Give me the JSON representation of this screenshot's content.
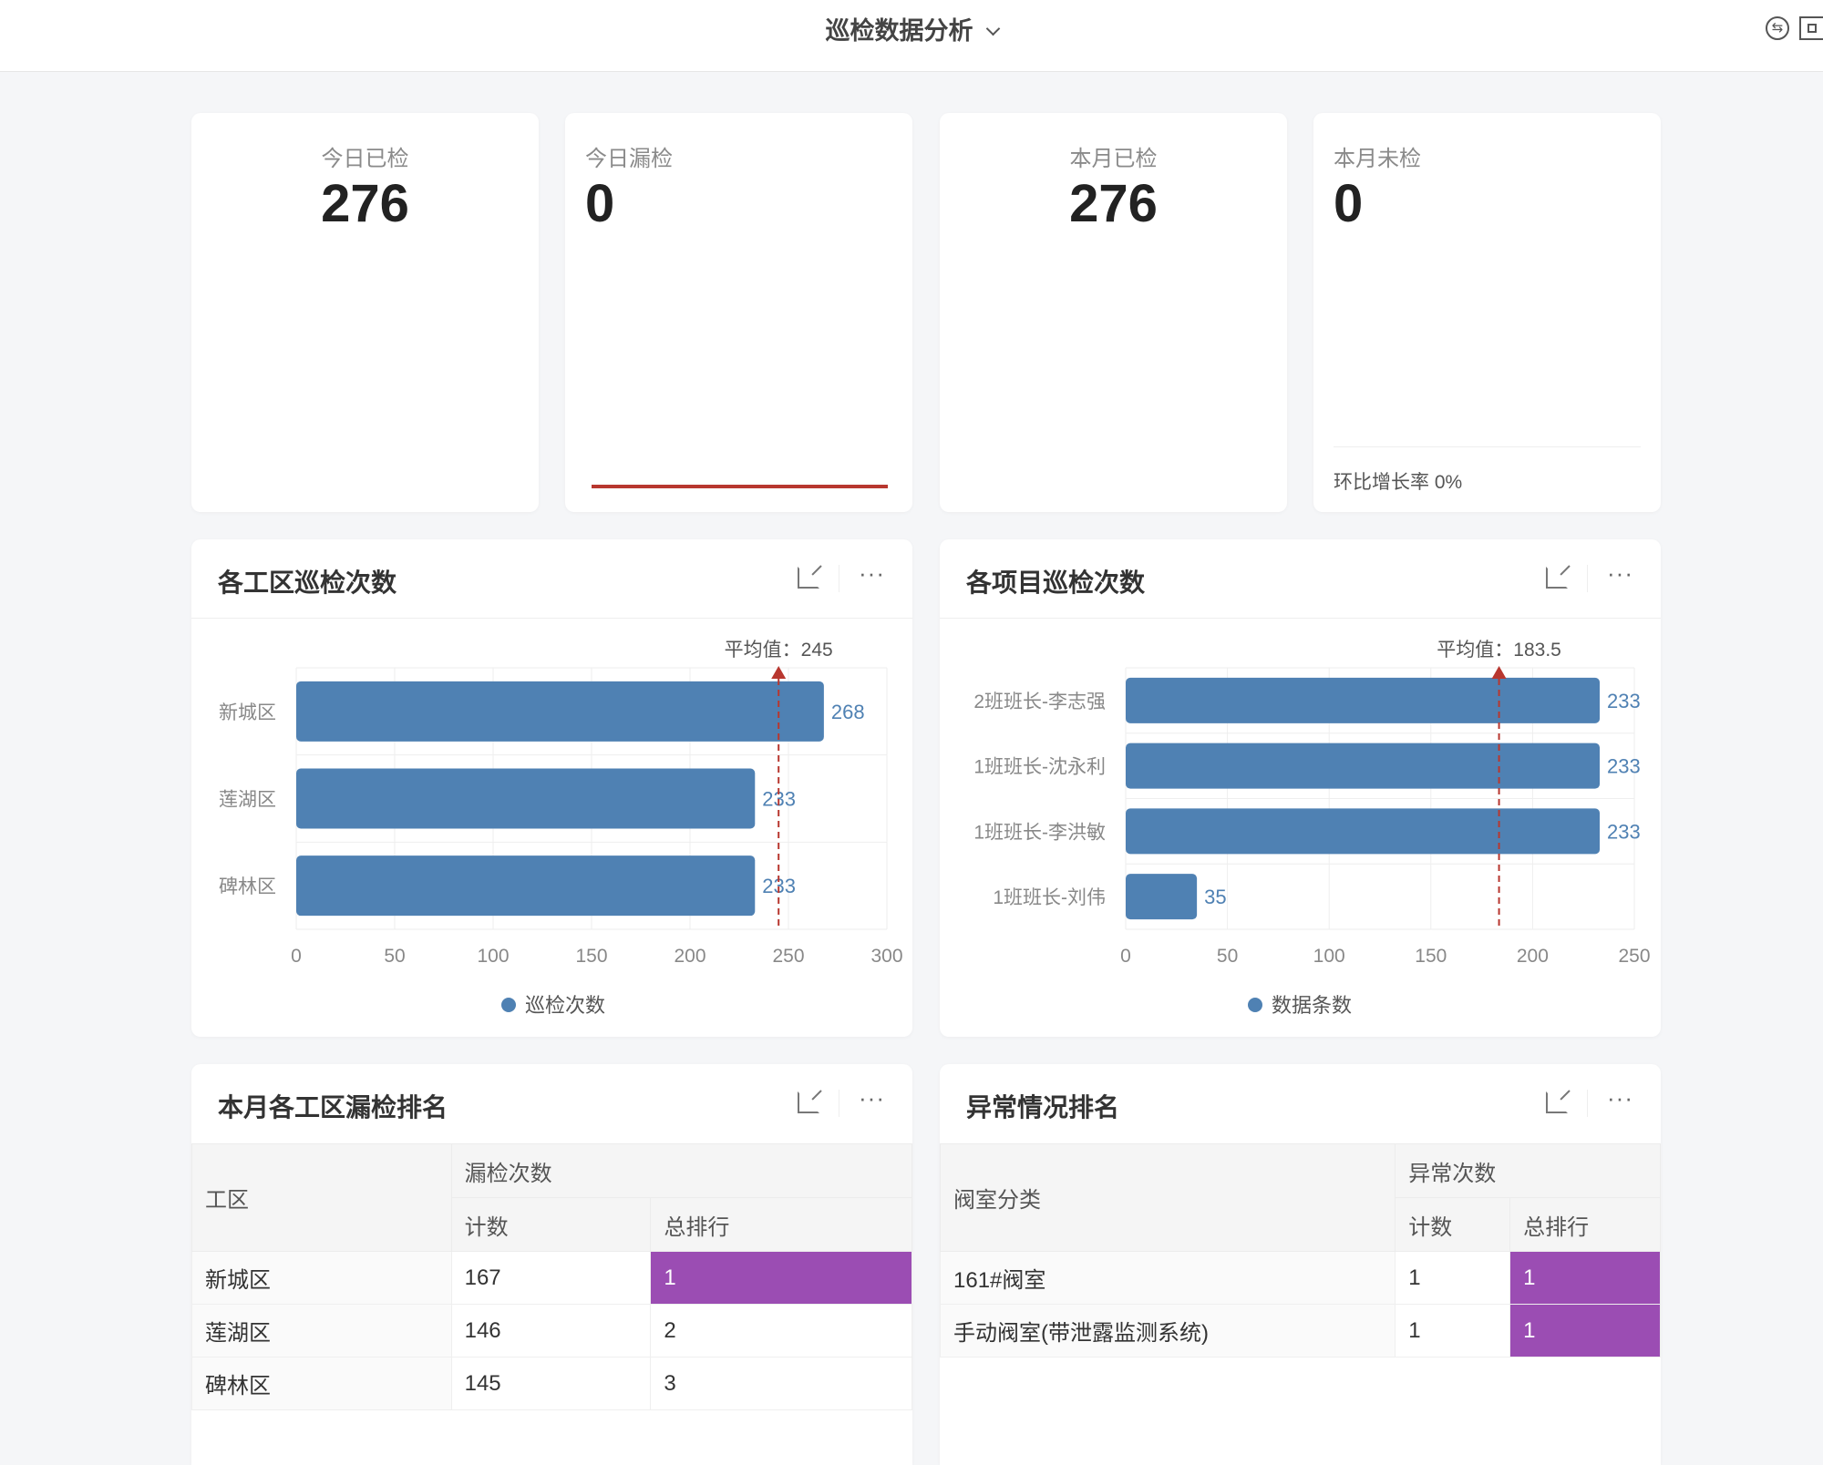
{
  "header": {
    "title": "巡检数据分析",
    "icons": [
      "switch-icon",
      "fullscreen-icon"
    ]
  },
  "kpis": [
    {
      "label": "今日已检",
      "value": "276"
    },
    {
      "label": "今日漏检",
      "value": "0"
    },
    {
      "label": "本月已检",
      "value": "276"
    },
    {
      "label": "本月未检",
      "value": "0",
      "growth": "环比增长率 0%"
    }
  ],
  "colors": {
    "bar": "#4f81b3",
    "avg_line": "#b8372f",
    "highlight": "#9b4db3"
  },
  "chart_data": [
    {
      "type": "bar",
      "orientation": "horizontal",
      "title": "各工区巡检次数",
      "categories": [
        "新城区",
        "莲湖区",
        "碑林区"
      ],
      "series": [
        {
          "name": "巡检次数",
          "values": [
            268,
            233,
            233
          ]
        }
      ],
      "xlim": [
        0,
        300
      ],
      "ticks": [
        "0",
        "50",
        "100",
        "150",
        "200",
        "250",
        "300"
      ],
      "avg_label": "平均值：245",
      "avg": 245,
      "grid": true,
      "legend": "bottom"
    },
    {
      "type": "bar",
      "orientation": "horizontal",
      "title": "各项目巡检次数",
      "categories": [
        "2班班长-李志强",
        "1班班长-沈永利",
        "1班班长-李洪敏",
        "1班班长-刘伟"
      ],
      "series": [
        {
          "name": "数据条数",
          "values": [
            233,
            233,
            233,
            35
          ]
        }
      ],
      "xlim": [
        0,
        250
      ],
      "ticks": [
        "0",
        "50",
        "100",
        "150",
        "200",
        "250"
      ],
      "avg_label": "平均值：183.5",
      "avg": 183.5,
      "grid": true,
      "legend": "bottom"
    }
  ],
  "table1": {
    "title": "本月各工区漏检排名",
    "col1": "工区",
    "group": "漏检次数",
    "sub": [
      "计数",
      "总排行"
    ],
    "rows": [
      [
        "新城区",
        "167",
        "1"
      ],
      [
        "莲湖区",
        "146",
        "2"
      ],
      [
        "碑林区",
        "145",
        "3"
      ]
    ]
  },
  "table2": {
    "title": "异常情况排名",
    "col1": "阀室分类",
    "group": "异常次数",
    "sub": [
      "计数",
      "总排行"
    ],
    "rows": [
      [
        "161#阀室",
        "1",
        "1"
      ],
      [
        "手动阀室(带泄露监测系统)",
        "1",
        "1"
      ]
    ]
  }
}
